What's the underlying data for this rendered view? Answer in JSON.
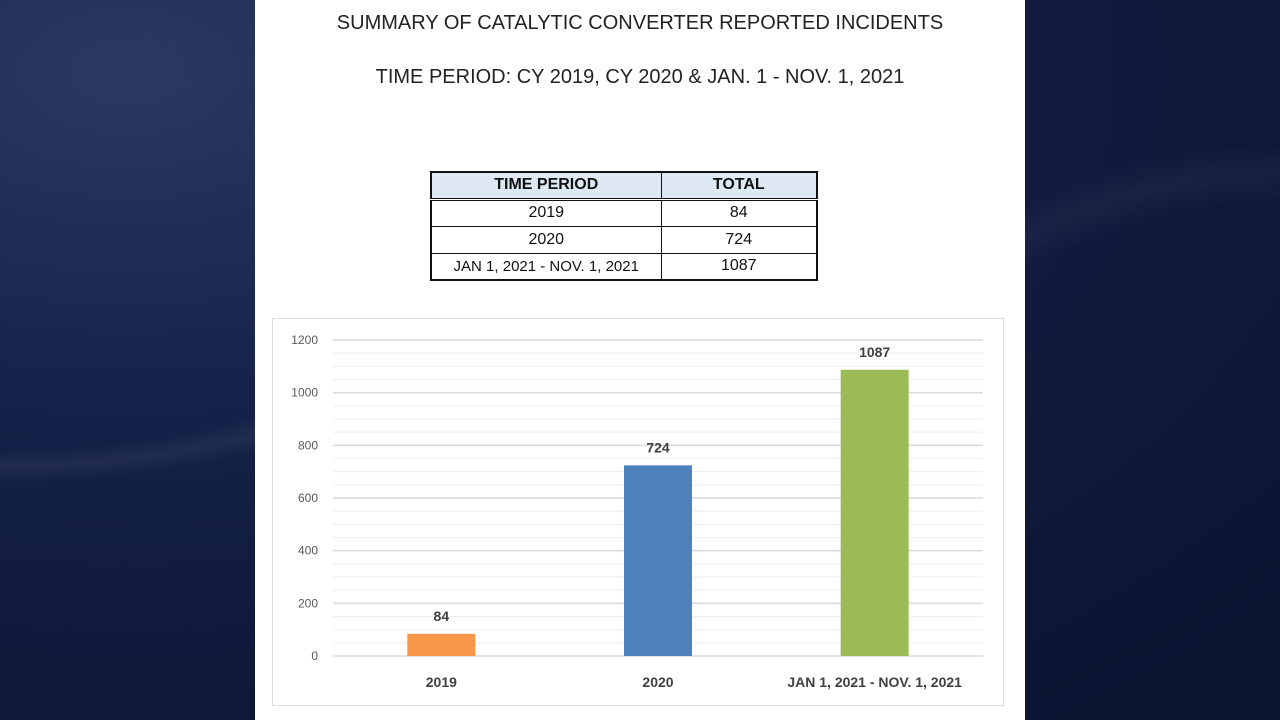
{
  "title": "SUMMARY OF CATALYTIC CONVERTER REPORTED INCIDENTS",
  "subtitle": "TIME PERIOD: CY 2019, CY 2020 & JAN. 1 - NOV. 1, 2021",
  "table": {
    "headers": [
      "TIME PERIOD",
      "TOTAL"
    ],
    "rows": [
      [
        "2019",
        "84"
      ],
      [
        "2020",
        "724"
      ],
      [
        "JAN 1, 2021 - NOV. 1, 2021",
        "1087"
      ]
    ]
  },
  "chart_data": {
    "type": "bar",
    "categories": [
      "2019",
      "2020",
      "JAN 1, 2021 - NOV. 1, 2021"
    ],
    "values": [
      84,
      724,
      1087
    ],
    "colors": [
      "#f79646",
      "#4f81bd",
      "#9bbb59"
    ],
    "ylim": [
      0,
      1200
    ],
    "yticks": [
      0,
      200,
      400,
      600,
      800,
      1000,
      1200
    ],
    "grid": true,
    "data_labels": true,
    "title": "",
    "xlabel": "",
    "ylabel": ""
  }
}
